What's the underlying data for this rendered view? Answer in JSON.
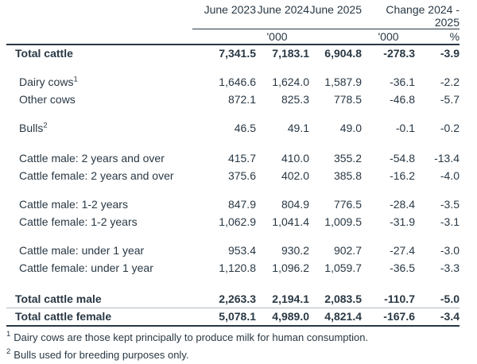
{
  "table": {
    "column_headers": [
      "June 2023",
      "June 2024",
      "June 2025",
      "Change 2024 - 2025"
    ],
    "units": {
      "june_thousands": "'000",
      "change_thousands": "'000",
      "change_percent": "%"
    },
    "rows": [
      {
        "label": "Total cattle",
        "bold": true,
        "values": [
          "7,341.5",
          "7,183.1",
          "6,904.8",
          "-278.3",
          "-3.9"
        ]
      },
      {
        "spacer": 14
      },
      {
        "label": "Dairy cows",
        "sup": "1",
        "values": [
          "1,646.6",
          "1,624.0",
          "1,587.9",
          "-36.1",
          "-2.2"
        ]
      },
      {
        "label": "Other cows",
        "values": [
          "872.1",
          "825.3",
          "778.5",
          "-46.8",
          "-5.7"
        ]
      },
      {
        "spacer": 14
      },
      {
        "label": "Bulls",
        "sup": "2",
        "values": [
          "46.5",
          "49.1",
          "49.0",
          "-0.1",
          "-0.2"
        ]
      },
      {
        "spacer": 16
      },
      {
        "label": "Cattle male: 2 years and over",
        "values": [
          "415.7",
          "410.0",
          "355.2",
          "-54.8",
          "-13.4"
        ]
      },
      {
        "label": "Cattle female: 2 years and over",
        "values": [
          "375.6",
          "402.0",
          "385.8",
          "-16.2",
          "-4.0"
        ]
      },
      {
        "spacer": 14
      },
      {
        "label": "Cattle male: 1-2 years",
        "values": [
          "847.9",
          "804.9",
          "776.5",
          "-28.4",
          "-3.5"
        ]
      },
      {
        "label": "Cattle female: 1-2 years",
        "values": [
          "1,062.9",
          "1,041.4",
          "1,009.5",
          "-31.9",
          "-3.1"
        ]
      },
      {
        "spacer": 14
      },
      {
        "label": "Cattle male: under 1 year",
        "values": [
          "953.4",
          "930.2",
          "902.7",
          "-27.4",
          "-3.0"
        ]
      },
      {
        "label": "Cattle female: under 1 year",
        "values": [
          "1,120.8",
          "1,096.2",
          "1,059.7",
          "-36.5",
          "-3.3"
        ]
      },
      {
        "spacer": 18
      },
      {
        "label": "Total cattle male",
        "bold": true,
        "rule_below": "thin",
        "values": [
          "2,263.3",
          "2,194.1",
          "2,083.5",
          "-110.7",
          "-5.0"
        ]
      },
      {
        "label": "Total cattle female",
        "bold": true,
        "rule_below": "dark",
        "values": [
          "5,078.1",
          "4,989.0",
          "4,821.4",
          "-167.6",
          "-3.4"
        ]
      }
    ]
  },
  "footnotes": [
    {
      "marker": "1",
      "text": "Dairy cows are those kept principally to produce milk for human consumption."
    },
    {
      "marker": "2",
      "text": "Bulls used for breeding purposes only."
    }
  ],
  "colors": {
    "text": "#293844",
    "rule_dark": "#293844",
    "rule_light": "#b4bac0",
    "background": "#ffffff"
  }
}
